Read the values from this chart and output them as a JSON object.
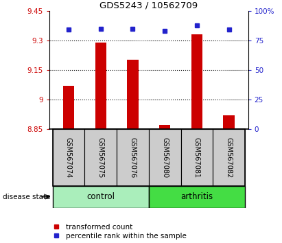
{
  "title": "GDS5243 / 10562709",
  "samples": [
    "GSM567074",
    "GSM567075",
    "GSM567076",
    "GSM567080",
    "GSM567081",
    "GSM567082"
  ],
  "bar_values": [
    9.07,
    9.29,
    9.2,
    8.87,
    9.33,
    8.92
  ],
  "bar_baseline": 8.85,
  "percentile_values": [
    84,
    85,
    85,
    83,
    88,
    84
  ],
  "ylim_left": [
    8.85,
    9.45
  ],
  "ylim_right": [
    0,
    100
  ],
  "yticks_left": [
    8.85,
    9.0,
    9.15,
    9.3,
    9.45
  ],
  "yticks_right": [
    0,
    25,
    50,
    75,
    100
  ],
  "ytick_labels_left": [
    "8.85",
    "9",
    "9.15",
    "9.3",
    "9.45"
  ],
  "ytick_labels_right": [
    "0",
    "25",
    "50",
    "75",
    "100%"
  ],
  "bar_color": "#cc0000",
  "dot_color": "#2222cc",
  "control_color": "#aaeebb",
  "arthritis_color": "#44dd44",
  "label_bg_color": "#cccccc",
  "disease_state_label": "disease state",
  "legend_bar_label": "transformed count",
  "legend_dot_label": "percentile rank within the sample",
  "plot_bg_color": "#ffffff",
  "fig_width": 4.11,
  "fig_height": 3.54,
  "dpi": 100
}
